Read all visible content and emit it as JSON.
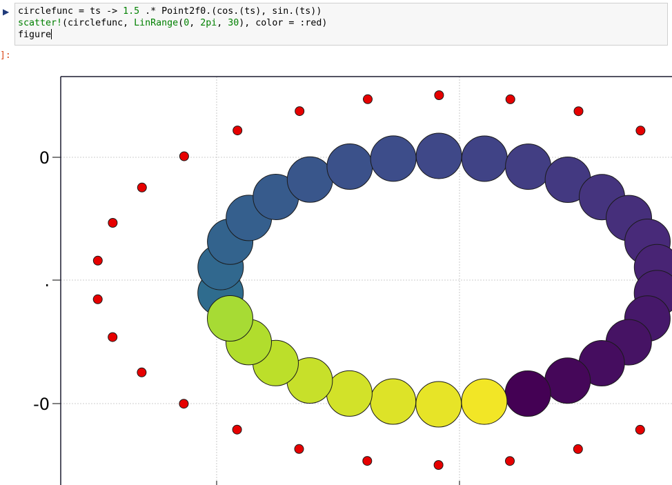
{
  "cell": {
    "run_icon": "▶",
    "code_lines": [
      [
        {
          "t": "circlefunc = ts -> ",
          "c": "#000000"
        },
        {
          "t": "1.5",
          "c": "#008000"
        },
        {
          "t": " .* Point2f0.(cos.(ts), sin.(ts))",
          "c": "#000000"
        }
      ],
      [
        {
          "t": "scatter!",
          "c": "#008000"
        },
        {
          "t": "(circlefunc, ",
          "c": "#000000"
        },
        {
          "t": "LinRange",
          "c": "#008000"
        },
        {
          "t": "(",
          "c": "#000000"
        },
        {
          "t": "0",
          "c": "#008000"
        },
        {
          "t": ", ",
          "c": "#000000"
        },
        {
          "t": "2pi",
          "c": "#008000"
        },
        {
          "t": ", ",
          "c": "#000000"
        },
        {
          "t": "30",
          "c": "#008000"
        },
        {
          "t": "), color = :red)",
          "c": "#000000"
        }
      ],
      [
        {
          "t": "figure",
          "c": "#000000"
        }
      ]
    ],
    "output_prompt": "]:"
  },
  "plot": {
    "y_tick_labels": [
      "0",
      ".",
      "-0"
    ],
    "gridline_color": "#bdbdbd",
    "frame_color": "#1a1a2e",
    "red_marker_color": "#e60000",
    "viridis_stops": [
      "#440154",
      "#482878",
      "#3e4a89",
      "#31688e",
      "#26828e",
      "#1f9e89",
      "#35b779",
      "#6ece58",
      "#b5de2b",
      "#fde725"
    ]
  },
  "chart_data": {
    "type": "scatter",
    "series": [
      {
        "name": "",
        "color": "red",
        "n_points": 30,
        "x_range": [
          0,
          6.283
        ]
      },
      {
        "name": "",
        "colormap": "viridis",
        "n_points": 30
      }
    ],
    "y_tick_labels": [
      "0",
      ".",
      "-0"
    ],
    "grid": true
  }
}
